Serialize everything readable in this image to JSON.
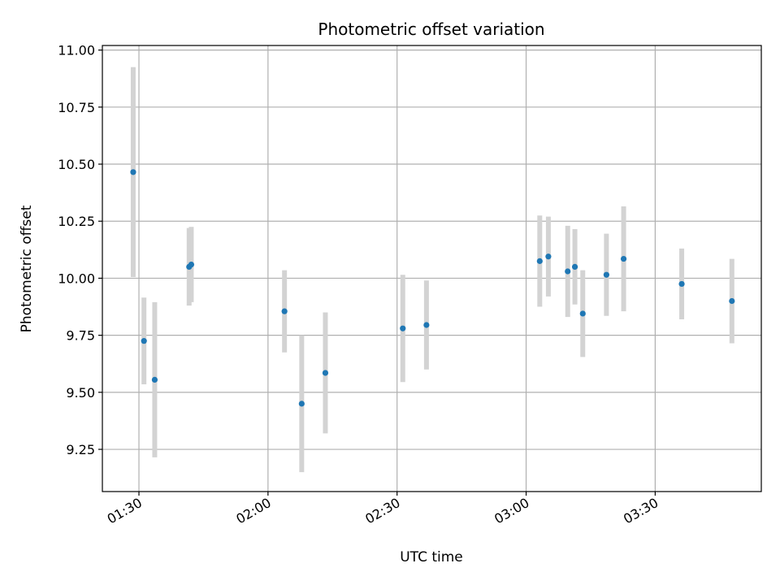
{
  "chart_data": {
    "type": "scatter",
    "title": "Photometric offset variation",
    "xlabel": "UTC time",
    "ylabel": "Photometric offset",
    "grid": true,
    "xlim": [
      "01:21:30",
      "03:54:40"
    ],
    "ylim": [
      9.065,
      11.02
    ],
    "x_ticks": [
      "01:30",
      "02:00",
      "02:30",
      "03:00",
      "03:30"
    ],
    "y_ticks": [
      "9.25",
      "9.50",
      "9.75",
      "10.00",
      "10.25",
      "10.50",
      "10.75",
      "11.00"
    ],
    "colors": {
      "point": "#1f77b4",
      "errorbar": "#d3d3d3",
      "grid": "#b0b0b0"
    },
    "series": [
      {
        "points": [
          {
            "x": "01:28:40",
            "y": 10.465,
            "yerr": 0.46
          },
          {
            "x": "01:31:10",
            "y": 9.725,
            "yerr": 0.19
          },
          {
            "x": "01:33:40",
            "y": 9.555,
            "yerr": 0.34
          },
          {
            "x": "01:41:40",
            "y": 10.05,
            "yerr": 0.17
          },
          {
            "x": "01:42:10",
            "y": 10.06,
            "yerr": 0.165
          },
          {
            "x": "02:03:50",
            "y": 9.855,
            "yerr": 0.18
          },
          {
            "x": "02:07:50",
            "y": 9.45,
            "yerr": 0.3
          },
          {
            "x": "02:13:20",
            "y": 9.585,
            "yerr": 0.265
          },
          {
            "x": "02:31:20",
            "y": 9.78,
            "yerr": 0.235
          },
          {
            "x": "02:36:50",
            "y": 9.795,
            "yerr": 0.195
          },
          {
            "x": "03:03:10",
            "y": 10.075,
            "yerr": 0.2
          },
          {
            "x": "03:05:10",
            "y": 10.095,
            "yerr": 0.175
          },
          {
            "x": "03:09:40",
            "y": 10.03,
            "yerr": 0.2
          },
          {
            "x": "03:11:20",
            "y": 10.05,
            "yerr": 0.165
          },
          {
            "x": "03:13:10",
            "y": 9.845,
            "yerr": 0.19
          },
          {
            "x": "03:18:40",
            "y": 10.015,
            "yerr": 0.18
          },
          {
            "x": "03:22:40",
            "y": 10.085,
            "yerr": 0.23
          },
          {
            "x": "03:36:10",
            "y": 9.975,
            "yerr": 0.155
          },
          {
            "x": "03:47:50",
            "y": 9.9,
            "yerr": 0.185
          }
        ]
      }
    ]
  }
}
